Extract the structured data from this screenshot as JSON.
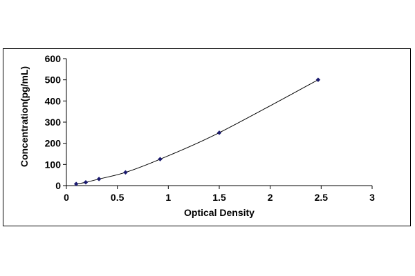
{
  "chart_data": {
    "type": "scatter",
    "title": "",
    "xlabel": "Optical Density",
    "ylabel": "Concentration(pg/mL)",
    "xlim": [
      0,
      3
    ],
    "ylim": [
      0,
      600
    ],
    "x_ticks": [
      "0",
      "0.5",
      "1",
      "1.5",
      "2",
      "2.5",
      "3"
    ],
    "y_ticks": [
      "0",
      "100",
      "200",
      "300",
      "400",
      "500",
      "600"
    ],
    "grid": false,
    "legend": "none",
    "series": [
      {
        "marker": "diamond",
        "trendline": "fitted curve",
        "x": [
          0.096,
          0.19,
          0.32,
          0.58,
          0.92,
          1.5,
          2.47
        ],
        "y": [
          7.8,
          15.6,
          31.2,
          62.5,
          125,
          250,
          500
        ]
      }
    ],
    "colors": {
      "marker": "#1a1a6e",
      "curve": "#000000",
      "axis": "#000000"
    }
  }
}
